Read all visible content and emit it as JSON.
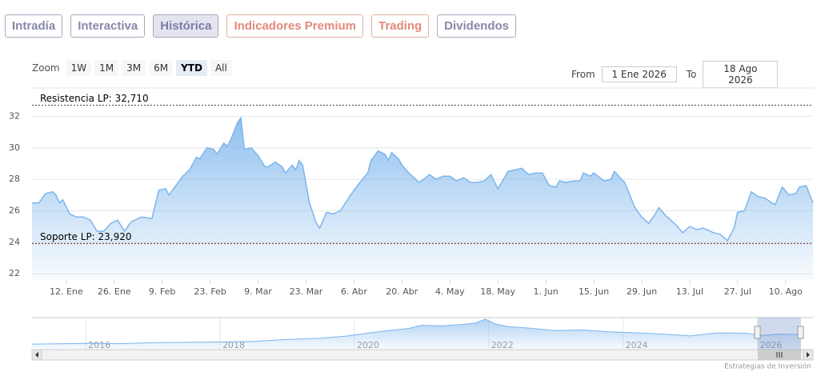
{
  "tabs": [
    "Intradía",
    "Interactiva",
    "Histórica",
    "Indicadores Premium",
    "Trading",
    "Dividendos"
  ],
  "active_tab": 2,
  "zoom": {
    "label": "Zoom",
    "buttons": [
      "1W",
      "1M",
      "3M",
      "6M",
      "YTD",
      "All"
    ],
    "selected": 4
  },
  "range": {
    "from_label": "From",
    "from": "1 Ene 2026",
    "to_label": "To",
    "to": "18 Ago 2026"
  },
  "credit": "Estrategias de Inversión",
  "chart_data": [
    {
      "type": "area",
      "color": "#7cb5ec",
      "x": [
        "2026-01-02",
        "2026-01-04",
        "2026-01-06",
        "2026-01-08",
        "2026-01-09",
        "2026-01-10",
        "2026-01-11",
        "2026-01-13",
        "2026-01-15",
        "2026-01-17",
        "2026-01-19",
        "2026-01-21",
        "2026-01-23",
        "2026-01-25",
        "2026-01-27",
        "2026-01-29",
        "2026-01-31",
        "2026-02-03",
        "2026-02-06",
        "2026-02-08",
        "2026-02-10",
        "2026-02-11",
        "2026-02-13",
        "2026-02-15",
        "2026-02-17",
        "2026-02-19",
        "2026-02-20",
        "2026-02-22",
        "2026-02-24",
        "2026-02-25",
        "2026-02-27",
        "2026-02-28",
        "2026-03-01",
        "2026-03-03",
        "2026-03-04",
        "2026-03-05",
        "2026-03-07",
        "2026-03-09",
        "2026-03-11",
        "2026-03-12",
        "2026-03-14",
        "2026-03-16",
        "2026-03-17",
        "2026-03-19",
        "2026-03-20",
        "2026-03-21",
        "2026-03-22",
        "2026-03-24",
        "2026-03-26",
        "2026-03-27",
        "2026-03-29",
        "2026-03-31",
        "2026-04-02",
        "2026-04-05",
        "2026-04-07",
        "2026-04-10",
        "2026-04-11",
        "2026-04-13",
        "2026-04-15",
        "2026-04-16",
        "2026-04-17",
        "2026-04-19",
        "2026-04-20",
        "2026-04-22",
        "2026-04-25",
        "2026-04-27",
        "2026-04-28",
        "2026-04-30",
        "2026-05-02",
        "2026-05-04",
        "2026-05-06",
        "2026-05-08",
        "2026-05-10",
        "2026-05-12",
        "2026-05-14",
        "2026-05-16",
        "2026-05-18",
        "2026-05-21",
        "2026-05-23",
        "2026-05-25",
        "2026-05-27",
        "2026-05-29",
        "2026-05-31",
        "2026-06-02",
        "2026-06-04",
        "2026-06-05",
        "2026-06-07",
        "2026-06-09",
        "2026-06-11",
        "2026-06-12",
        "2026-06-14",
        "2026-06-15",
        "2026-06-18",
        "2026-06-20",
        "2026-06-21",
        "2026-06-24",
        "2026-06-27",
        "2026-06-29",
        "2026-07-01",
        "2026-07-03",
        "2026-07-04",
        "2026-07-06",
        "2026-07-09",
        "2026-07-11",
        "2026-07-13",
        "2026-07-15",
        "2026-07-17",
        "2026-07-20",
        "2026-07-22",
        "2026-07-24",
        "2026-07-26",
        "2026-07-27",
        "2026-07-29",
        "2026-07-31",
        "2026-08-02",
        "2026-08-04",
        "2026-08-06",
        "2026-08-07",
        "2026-08-09",
        "2026-08-11",
        "2026-08-13",
        "2026-08-14",
        "2026-08-16",
        "2026-08-18"
      ],
      "values": [
        26.5,
        26.5,
        27.1,
        27.2,
        27.0,
        26.5,
        26.7,
        25.8,
        25.6,
        25.6,
        25.4,
        24.7,
        24.7,
        25.2,
        25.4,
        24.7,
        25.3,
        25.6,
        25.5,
        27.3,
        27.4,
        27.0,
        27.6,
        28.2,
        28.6,
        29.4,
        29.3,
        30.0,
        29.9,
        29.6,
        30.3,
        30.1,
        30.5,
        31.6,
        31.9,
        29.9,
        30.0,
        29.5,
        28.8,
        28.8,
        29.1,
        28.8,
        28.4,
        28.9,
        28.6,
        29.2,
        28.9,
        26.5,
        25.2,
        24.9,
        25.9,
        25.8,
        26.0,
        27.0,
        27.6,
        28.4,
        29.2,
        29.8,
        29.6,
        29.2,
        29.7,
        29.3,
        28.9,
        28.4,
        27.8,
        28.1,
        28.3,
        28.0,
        28.2,
        28.2,
        27.9,
        28.1,
        27.8,
        27.8,
        27.9,
        28.3,
        27.4,
        28.5,
        28.6,
        28.7,
        28.3,
        28.4,
        28.4,
        27.6,
        27.5,
        27.9,
        27.8,
        27.9,
        27.9,
        28.4,
        28.2,
        28.4,
        27.9,
        28.0,
        28.5,
        27.8,
        26.2,
        25.6,
        25.2,
        25.8,
        26.2,
        25.7,
        25.1,
        24.6,
        25.0,
        24.8,
        24.9,
        24.6,
        24.5,
        24.1,
        24.9,
        25.9,
        26.0,
        27.2,
        26.9,
        26.8,
        26.5,
        26.4,
        27.5,
        27.0,
        27.1,
        27.5,
        27.6,
        26.5
      ],
      "xlim": [
        "2026-01-02",
        "2026-08-18"
      ],
      "xticks": [
        {
          "value": "2026-01-12",
          "label": "12. Ene"
        },
        {
          "value": "2026-01-26",
          "label": "26. Ene"
        },
        {
          "value": "2026-02-09",
          "label": "9. Feb"
        },
        {
          "value": "2026-02-23",
          "label": "23. Feb"
        },
        {
          "value": "2026-03-09",
          "label": "9. Mar"
        },
        {
          "value": "2026-03-23",
          "label": "23. Mar"
        },
        {
          "value": "2026-04-06",
          "label": "6. Abr"
        },
        {
          "value": "2026-04-20",
          "label": "20. Abr"
        },
        {
          "value": "2026-05-04",
          "label": "4. May"
        },
        {
          "value": "2026-05-18",
          "label": "18. May"
        },
        {
          "value": "2026-06-01",
          "label": "1. Jun"
        },
        {
          "value": "2026-06-15",
          "label": "15. Jun"
        },
        {
          "value": "2026-06-29",
          "label": "29. Jun"
        },
        {
          "value": "2026-07-13",
          "label": "13. Jul"
        },
        {
          "value": "2026-07-27",
          "label": "27. Jul"
        },
        {
          "value": "2026-08-10",
          "label": "10. Ago"
        }
      ],
      "ylim": [
        21.6,
        33.8
      ],
      "yticks": [
        22,
        24,
        26,
        28,
        30,
        32
      ],
      "grid": true,
      "plot_lines": [
        {
          "value": 32.71,
          "label": "Resistencia LP: 32,710",
          "color": "#2f4f2f"
        },
        {
          "value": 23.92,
          "label": "Soporte LP: 23,920",
          "color": "#8b1a1a"
        }
      ]
    },
    {
      "type": "area",
      "color": "#7cb5ec",
      "x": [
        2015.2,
        2015.6,
        2016.0,
        2016.5,
        2017.0,
        2017.5,
        2018.0,
        2018.5,
        2019.0,
        2019.5,
        2019.9,
        2020.2,
        2020.5,
        2020.8,
        2021.0,
        2021.3,
        2021.6,
        2021.8,
        2021.95,
        2022.1,
        2022.3,
        2022.6,
        2023.0,
        2023.4,
        2023.8,
        2024.2,
        2024.6,
        2025.0,
        2025.4,
        2025.8,
        2026.1,
        2026.3,
        2026.65
      ],
      "values": [
        6.0,
        6.3,
        6.8,
        6.5,
        7.5,
        8.0,
        8.3,
        9.0,
        11.0,
        12.5,
        15.0,
        18.0,
        20.8,
        23.0,
        26.7,
        26.0,
        27.5,
        29.0,
        33.3,
        28.0,
        25.0,
        23.5,
        20.8,
        21.5,
        19.5,
        18.3,
        17.0,
        15.0,
        18.3,
        18.0,
        15.5,
        17.0,
        16.5
      ],
      "xlim": [
        2015.2,
        2026.65
      ],
      "ylim": [
        0,
        35
      ],
      "xticks": [
        2016,
        2018,
        2020,
        2022,
        2024,
        2026
      ]
    }
  ]
}
